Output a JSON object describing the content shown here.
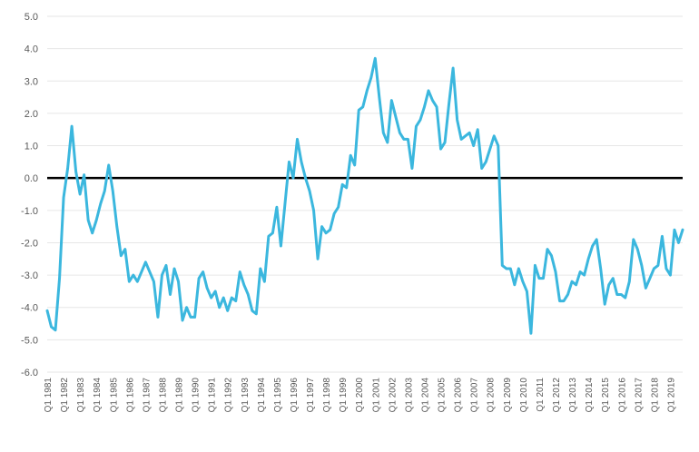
{
  "chart_data": {
    "type": "line",
    "title": "",
    "xlabel": "",
    "ylabel": "",
    "ylim": [
      -6.0,
      5.0
    ],
    "yticks": [
      "5.0",
      "4.0",
      "3.0",
      "2.0",
      "1.0",
      "0.0",
      "-1.0",
      "-2.0",
      "-3.0",
      "-4.0",
      "-5.0",
      "-6.0"
    ],
    "xtick_labels": [
      "Q1 1981",
      "Q1 1982",
      "Q1 1983",
      "Q1 1984",
      "Q1 1985",
      "Q1 1986",
      "Q1 1987",
      "Q1 1988",
      "Q1 1989",
      "Q1 1990",
      "Q1 1991",
      "Q1 1992",
      "Q1 1993",
      "Q1 1994",
      "Q1 1995",
      "Q1 1996",
      "Q1 1997",
      "Q1 1998",
      "Q1 1999",
      "Q1 2000",
      "Q1 2001",
      "Q1 2002",
      "Q1 2003",
      "Q1 2004",
      "Q1 2005",
      "Q1 2006",
      "Q1 2007",
      "Q1 2008",
      "Q1 2009",
      "Q1 2010",
      "Q1 2011",
      "Q1 2012",
      "Q1 2013",
      "Q1 2014",
      "Q1 2015",
      "Q1 2016",
      "Q1 2017",
      "Q1 2018",
      "Q1 2019"
    ],
    "grid": true,
    "reference_line": 0,
    "line_color": "#3bb7de",
    "reference_color": "#000000",
    "series": [
      {
        "values": [
          -4.1,
          -4.6,
          -4.7,
          -3.1,
          -0.6,
          0.3,
          1.6,
          0.2,
          -0.5,
          0.1,
          -1.3,
          -1.7,
          -1.3,
          -0.8,
          -0.4,
          0.4,
          -0.4,
          -1.5,
          -2.4,
          -2.2,
          -3.2,
          -3.0,
          -3.2,
          -2.9,
          -2.6,
          -2.9,
          -3.2,
          -4.3,
          -3.0,
          -2.7,
          -3.6,
          -2.8,
          -3.2,
          -4.4,
          -4.0,
          -4.3,
          -4.3,
          -3.1,
          -2.9,
          -3.4,
          -3.7,
          -3.5,
          -4.0,
          -3.7,
          -4.1,
          -3.7,
          -3.8,
          -2.9,
          -3.3,
          -3.6,
          -4.1,
          -4.2,
          -2.8,
          -3.2,
          -1.8,
          -1.7,
          -0.9,
          -2.1,
          -0.8,
          0.5,
          0.0,
          1.2,
          0.5,
          0.0,
          -0.4,
          -1.0,
          -2.5,
          -1.5,
          -1.7,
          -1.6,
          -1.1,
          -0.9,
          -0.2,
          -0.3,
          0.7,
          0.4,
          2.1,
          2.2,
          2.7,
          3.1,
          3.7,
          2.5,
          1.4,
          1.1,
          2.4,
          1.9,
          1.4,
          1.2,
          1.2,
          0.3,
          1.6,
          1.8,
          2.2,
          2.7,
          2.4,
          2.2,
          0.9,
          1.1,
          2.3,
          3.4,
          1.8,
          1.2,
          1.3,
          1.4,
          1.0,
          1.5,
          0.3,
          0.5,
          0.9,
          1.3,
          1.0,
          -2.7,
          -2.8,
          -2.8,
          -3.3,
          -2.8,
          -3.2,
          -3.5,
          -4.8,
          -2.7,
          -3.1,
          -3.1,
          -2.2,
          -2.4,
          -2.9,
          -3.8,
          -3.8,
          -3.6,
          -3.2,
          -3.3,
          -2.9,
          -3.0,
          -2.5,
          -2.1,
          -1.9,
          -2.8,
          -3.9,
          -3.3,
          -3.1,
          -3.6,
          -3.6,
          -3.7,
          -3.2,
          -1.9,
          -2.2,
          -2.7,
          -3.4,
          -3.1,
          -2.8,
          -2.7,
          -1.8,
          -2.8,
          -3.0,
          -1.6,
          -2.0,
          -1.6
        ]
      }
    ]
  }
}
